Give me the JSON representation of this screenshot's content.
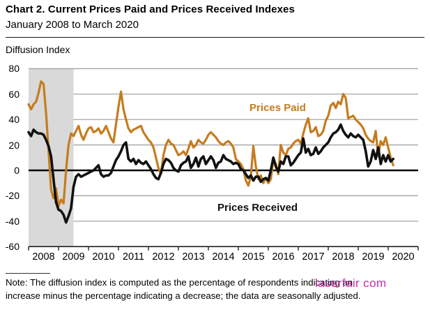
{
  "header": {
    "title": "Chart 2. Current Prices Paid and Prices Received Indexes",
    "subtitle": "January 2008 to March 2020"
  },
  "y_axis_title": "Diffusion Index",
  "note": {
    "line1": "Note: The diffusion index is computed as the percentage of respondents indicating an",
    "line2": "increase minus the percentage indicating a decrease; the data are seasonally adjusted."
  },
  "watermark": {
    "text": "laserfair com",
    "color": "#c0109e"
  },
  "colors": {
    "prices_paid": "#c57c1e",
    "prices_received": "#111111",
    "gridline": "#9c9c9c",
    "recession_band": "#d9d9d9",
    "zero_line": "#000000",
    "axis_line": "#222222"
  },
  "chart_data": {
    "type": "line",
    "title": "Chart 2. Current Prices Paid and Prices Received Indexes",
    "subtitle": "January 2008 to March 2020",
    "ylabel": "Diffusion Index",
    "ylim": [
      -60,
      80
    ],
    "yticks": [
      80,
      60,
      40,
      20,
      0,
      -20,
      -40,
      -60
    ],
    "x_start": "2008-01",
    "x_end": "2020-03",
    "x_frequency": "monthly",
    "xticks": [
      2008,
      2009,
      2010,
      2011,
      2012,
      2013,
      2014,
      2015,
      2016,
      2017,
      2018,
      2019,
      2020
    ],
    "grid": "horizontal",
    "legend_position": "labels-on-chart",
    "recession_shading": {
      "from": "2008-01",
      "to": "2009-06"
    },
    "series": [
      {
        "name": "Prices Paid",
        "color": "#c57c1e",
        "values": [
          52,
          48,
          52,
          54,
          61,
          70,
          68,
          45,
          15,
          -15,
          -22,
          -14,
          -28,
          -23,
          -26,
          0,
          20,
          29,
          27,
          31,
          35,
          28,
          24,
          29,
          33,
          34,
          30,
          31,
          33,
          29,
          31,
          35,
          30,
          25,
          22,
          36,
          50,
          62,
          48,
          40,
          33,
          30,
          32,
          33,
          34,
          35,
          30,
          27,
          24,
          22,
          18,
          10,
          2,
          -3,
          12,
          20,
          24,
          21,
          20,
          16,
          12,
          13,
          15,
          12,
          17,
          23,
          18,
          20,
          24,
          22,
          21,
          24,
          28,
          30,
          28,
          26,
          23,
          21,
          20,
          22,
          23,
          21,
          18,
          9,
          7,
          5,
          1,
          -8,
          -12,
          -5,
          19,
          3,
          -7,
          -4,
          -10,
          -6,
          -10,
          -7,
          9,
          5,
          -3,
          20,
          14,
          12,
          17,
          18,
          21,
          23,
          24,
          21,
          29,
          36,
          41,
          30,
          31,
          34,
          27,
          28,
          31,
          39,
          43,
          51,
          53,
          49,
          54,
          52,
          60,
          57,
          41,
          42,
          43,
          40,
          38,
          36,
          33,
          28,
          25,
          23,
          22,
          31,
          11,
          23,
          20,
          26,
          18,
          10,
          4
        ]
      },
      {
        "name": "Prices Received",
        "color": "#111111",
        "values": [
          30,
          27,
          32,
          30,
          29,
          29,
          28,
          24,
          19,
          11,
          -7,
          -25,
          -31,
          -32,
          -35,
          -41,
          -36,
          -30,
          -13,
          -5,
          -3,
          -5,
          -4,
          -3,
          -2,
          -1,
          0,
          2,
          4,
          -3,
          -5,
          -4,
          -4,
          -2,
          3,
          8,
          11,
          15,
          20,
          22,
          9,
          7,
          9,
          5,
          8,
          6,
          5,
          7,
          4,
          1,
          -3,
          -6,
          -7,
          -2,
          5,
          9,
          8,
          6,
          2,
          0,
          -1,
          4,
          6,
          7,
          11,
          2,
          5,
          10,
          3,
          9,
          11,
          5,
          8,
          11,
          8,
          2,
          6,
          7,
          12,
          9,
          8,
          7,
          5,
          6,
          5,
          1,
          0,
          -3,
          -6,
          -4,
          -8,
          -5,
          -5,
          -9,
          -7,
          -6,
          -8,
          0,
          10,
          3,
          -1,
          7,
          5,
          11,
          11,
          4,
          6,
          9,
          12,
          14,
          25,
          14,
          17,
          12,
          13,
          18,
          13,
          15,
          18,
          20,
          22,
          26,
          29,
          30,
          32,
          36,
          31,
          28,
          26,
          29,
          27,
          26,
          28,
          26,
          24,
          15,
          3,
          7,
          16,
          9,
          18,
          5,
          12,
          7,
          12,
          7,
          9
        ]
      }
    ]
  }
}
